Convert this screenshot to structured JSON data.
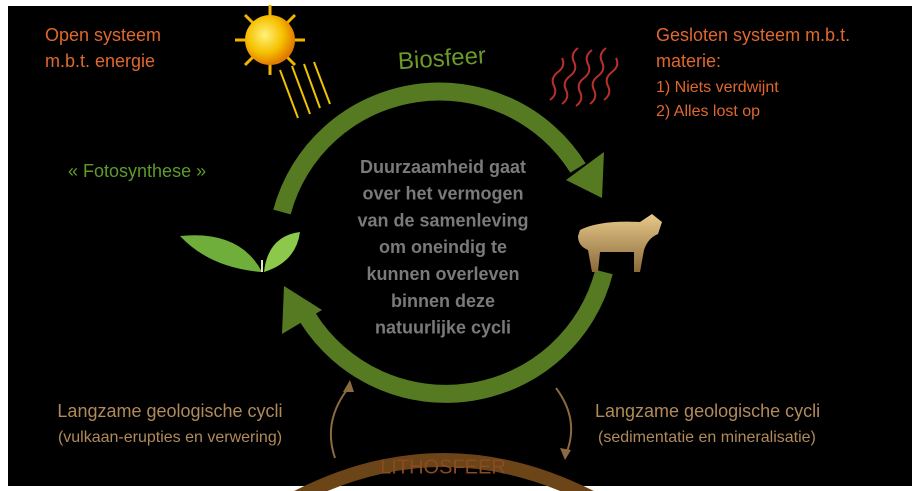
{
  "top_left": {
    "lines": [
      "Open systeem",
      "m.b.t. energie"
    ]
  },
  "biosphere": "Biosfeer",
  "top_right": {
    "lines": [
      "Gesloten systeem m.b.t.",
      "materie:",
      "1) Niets verdwijnt",
      "2) Alles lost op"
    ]
  },
  "photosynthesis": "« Fotosynthese »",
  "center": {
    "lines": [
      "Duurzaamheid gaat",
      "over het vermogen",
      "van de samenleving",
      "om oneindig te",
      "kunnen overleven",
      "binnen deze",
      "natuurlijke cycli"
    ]
  },
  "bottom_left": {
    "lines": [
      "Langzame geologische cycli",
      "(vulkaan-erupties en verwering)"
    ]
  },
  "bottom_right": {
    "lines": [
      "Langzame geologische cycli",
      "(sedimentatie en mineralisatie)"
    ]
  },
  "lithosphere": "LITHOSFEER"
}
